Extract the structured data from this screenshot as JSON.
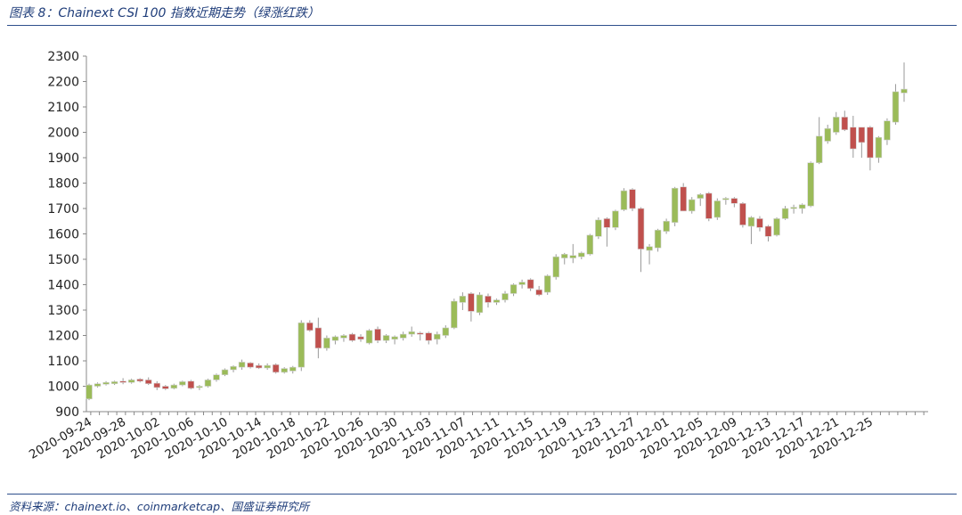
{
  "header": {
    "title": "图表 8：Chainext CSI 100 指数近期走势（绿涨红跌）"
  },
  "footer": {
    "source": "资料来源：chainext.io、coinmarketcap、国盛证券研究所"
  },
  "colors": {
    "up": "#9bbb59",
    "down": "#c0504d",
    "candle_border": "#d0d0d0",
    "wick": "#999999",
    "axis": "#888888",
    "rule": "#2e4f8c",
    "title_text": "#1f3d7a"
  },
  "chart_data": {
    "type": "candlestick",
    "ylim": [
      900,
      2300
    ],
    "yticks": [
      900,
      1000,
      1100,
      1200,
      1300,
      1400,
      1500,
      1600,
      1700,
      1800,
      1900,
      2000,
      2100,
      2200,
      2300
    ],
    "xtick_labels": [
      "2020-09-24",
      "2020-09-28",
      "2020-10-02",
      "2020-10-06",
      "2020-10-10",
      "2020-10-14",
      "2020-10-18",
      "2020-10-22",
      "2020-10-26",
      "2020-10-30",
      "2020-11-03",
      "2020-11-07",
      "2020-11-11",
      "2020-11-15",
      "2020-11-19",
      "2020-11-23",
      "2020-11-27",
      "2020-12-01",
      "2020-12-05",
      "2020-12-09",
      "2020-12-13",
      "2020-12-17",
      "2020-12-21",
      "2020-12-25"
    ],
    "grid": false,
    "candles": [
      {
        "date": "2020-09-24",
        "open": 950,
        "high": 1010,
        "low": 945,
        "close": 1005
      },
      {
        "date": "2020-09-25",
        "open": 1000,
        "high": 1015,
        "low": 995,
        "close": 1010
      },
      {
        "date": "2020-09-26",
        "open": 1008,
        "high": 1020,
        "low": 1003,
        "close": 1015
      },
      {
        "date": "2020-09-27",
        "open": 1010,
        "high": 1022,
        "low": 1005,
        "close": 1018
      },
      {
        "date": "2020-09-28",
        "open": 1020,
        "high": 1032,
        "low": 1008,
        "close": 1015
      },
      {
        "date": "2020-09-29",
        "open": 1015,
        "high": 1030,
        "low": 1010,
        "close": 1025
      },
      {
        "date": "2020-09-30",
        "open": 1028,
        "high": 1032,
        "low": 1015,
        "close": 1020
      },
      {
        "date": "2020-10-01",
        "open": 1025,
        "high": 1035,
        "low": 1005,
        "close": 1010
      },
      {
        "date": "2020-10-02",
        "open": 1012,
        "high": 1020,
        "low": 985,
        "close": 995
      },
      {
        "date": "2020-10-03",
        "open": 1000,
        "high": 1005,
        "low": 985,
        "close": 990
      },
      {
        "date": "2020-10-04",
        "open": 992,
        "high": 1010,
        "low": 988,
        "close": 1005
      },
      {
        "date": "2020-10-05",
        "open": 1005,
        "high": 1022,
        "low": 1000,
        "close": 1018
      },
      {
        "date": "2020-10-06",
        "open": 1020,
        "high": 1025,
        "low": 988,
        "close": 992
      },
      {
        "date": "2020-10-07",
        "open": 995,
        "high": 1005,
        "low": 985,
        "close": 1000
      },
      {
        "date": "2020-10-08",
        "open": 1000,
        "high": 1030,
        "low": 995,
        "close": 1025
      },
      {
        "date": "2020-10-09",
        "open": 1025,
        "high": 1050,
        "low": 1018,
        "close": 1045
      },
      {
        "date": "2020-10-10",
        "open": 1045,
        "high": 1070,
        "low": 1040,
        "close": 1065
      },
      {
        "date": "2020-10-11",
        "open": 1065,
        "high": 1082,
        "low": 1055,
        "close": 1078
      },
      {
        "date": "2020-10-12",
        "open": 1075,
        "high": 1105,
        "low": 1065,
        "close": 1095
      },
      {
        "date": "2020-10-13",
        "open": 1092,
        "high": 1095,
        "low": 1070,
        "close": 1075
      },
      {
        "date": "2020-10-14",
        "open": 1082,
        "high": 1090,
        "low": 1068,
        "close": 1072
      },
      {
        "date": "2020-10-15",
        "open": 1072,
        "high": 1090,
        "low": 1065,
        "close": 1082
      },
      {
        "date": "2020-10-16",
        "open": 1085,
        "high": 1090,
        "low": 1050,
        "close": 1055
      },
      {
        "date": "2020-10-17",
        "open": 1055,
        "high": 1075,
        "low": 1050,
        "close": 1070
      },
      {
        "date": "2020-10-18",
        "open": 1060,
        "high": 1080,
        "low": 1050,
        "close": 1075
      },
      {
        "date": "2020-10-19",
        "open": 1075,
        "high": 1260,
        "low": 1060,
        "close": 1250
      },
      {
        "date": "2020-10-20",
        "open": 1250,
        "high": 1260,
        "low": 1215,
        "close": 1220
      },
      {
        "date": "2020-10-21",
        "open": 1230,
        "high": 1270,
        "low": 1110,
        "close": 1150
      },
      {
        "date": "2020-10-22",
        "open": 1150,
        "high": 1200,
        "low": 1140,
        "close": 1190
      },
      {
        "date": "2020-10-23",
        "open": 1180,
        "high": 1200,
        "low": 1165,
        "close": 1195
      },
      {
        "date": "2020-10-24",
        "open": 1190,
        "high": 1205,
        "low": 1175,
        "close": 1200
      },
      {
        "date": "2020-10-25",
        "open": 1205,
        "high": 1210,
        "low": 1175,
        "close": 1180
      },
      {
        "date": "2020-10-26",
        "open": 1195,
        "high": 1205,
        "low": 1175,
        "close": 1185
      },
      {
        "date": "2020-10-27",
        "open": 1170,
        "high": 1225,
        "low": 1165,
        "close": 1220
      },
      {
        "date": "2020-10-28",
        "open": 1225,
        "high": 1235,
        "low": 1170,
        "close": 1180
      },
      {
        "date": "2020-10-29",
        "open": 1180,
        "high": 1205,
        "low": 1170,
        "close": 1200
      },
      {
        "date": "2020-10-30",
        "open": 1185,
        "high": 1200,
        "low": 1165,
        "close": 1195
      },
      {
        "date": "2020-10-31",
        "open": 1190,
        "high": 1215,
        "low": 1180,
        "close": 1205
      },
      {
        "date": "2020-11-01",
        "open": 1205,
        "high": 1235,
        "low": 1195,
        "close": 1215
      },
      {
        "date": "2020-11-02",
        "open": 1210,
        "high": 1215,
        "low": 1180,
        "close": 1205
      },
      {
        "date": "2020-11-03",
        "open": 1210,
        "high": 1215,
        "low": 1165,
        "close": 1180
      },
      {
        "date": "2020-11-04",
        "open": 1185,
        "high": 1215,
        "low": 1165,
        "close": 1205
      },
      {
        "date": "2020-11-05",
        "open": 1200,
        "high": 1240,
        "low": 1190,
        "close": 1230
      },
      {
        "date": "2020-11-06",
        "open": 1230,
        "high": 1345,
        "low": 1225,
        "close": 1335
      },
      {
        "date": "2020-11-07",
        "open": 1330,
        "high": 1370,
        "low": 1300,
        "close": 1355
      },
      {
        "date": "2020-11-08",
        "open": 1365,
        "high": 1370,
        "low": 1255,
        "close": 1295
      },
      {
        "date": "2020-11-09",
        "open": 1290,
        "high": 1370,
        "low": 1280,
        "close": 1360
      },
      {
        "date": "2020-11-10",
        "open": 1355,
        "high": 1365,
        "low": 1310,
        "close": 1330
      },
      {
        "date": "2020-11-11",
        "open": 1330,
        "high": 1345,
        "low": 1320,
        "close": 1340
      },
      {
        "date": "2020-11-12",
        "open": 1340,
        "high": 1375,
        "low": 1330,
        "close": 1365
      },
      {
        "date": "2020-11-13",
        "open": 1365,
        "high": 1405,
        "low": 1355,
        "close": 1400
      },
      {
        "date": "2020-11-14",
        "open": 1400,
        "high": 1420,
        "low": 1385,
        "close": 1410
      },
      {
        "date": "2020-11-15",
        "open": 1420,
        "high": 1425,
        "low": 1375,
        "close": 1385
      },
      {
        "date": "2020-11-16",
        "open": 1380,
        "high": 1395,
        "low": 1355,
        "close": 1360
      },
      {
        "date": "2020-11-17",
        "open": 1370,
        "high": 1440,
        "low": 1360,
        "close": 1435
      },
      {
        "date": "2020-11-18",
        "open": 1430,
        "high": 1520,
        "low": 1420,
        "close": 1510
      },
      {
        "date": "2020-11-19",
        "open": 1505,
        "high": 1525,
        "low": 1480,
        "close": 1520
      },
      {
        "date": "2020-11-20",
        "open": 1505,
        "high": 1560,
        "low": 1485,
        "close": 1515
      },
      {
        "date": "2020-11-21",
        "open": 1510,
        "high": 1530,
        "low": 1500,
        "close": 1525
      },
      {
        "date": "2020-11-22",
        "open": 1520,
        "high": 1600,
        "low": 1515,
        "close": 1595
      },
      {
        "date": "2020-11-23",
        "open": 1590,
        "high": 1665,
        "low": 1580,
        "close": 1655
      },
      {
        "date": "2020-11-24",
        "open": 1660,
        "high": 1665,
        "low": 1550,
        "close": 1625
      },
      {
        "date": "2020-11-25",
        "open": 1625,
        "high": 1695,
        "low": 1615,
        "close": 1690
      },
      {
        "date": "2020-11-26",
        "open": 1695,
        "high": 1780,
        "low": 1690,
        "close": 1770
      },
      {
        "date": "2020-11-27",
        "open": 1775,
        "high": 1780,
        "low": 1690,
        "close": 1700
      },
      {
        "date": "2020-11-28",
        "open": 1700,
        "high": 1705,
        "low": 1450,
        "close": 1540
      },
      {
        "date": "2020-11-29",
        "open": 1535,
        "high": 1560,
        "low": 1480,
        "close": 1550
      },
      {
        "date": "2020-11-30",
        "open": 1545,
        "high": 1620,
        "low": 1530,
        "close": 1615
      },
      {
        "date": "2020-12-01",
        "open": 1610,
        "high": 1660,
        "low": 1600,
        "close": 1650
      },
      {
        "date": "2020-12-02",
        "open": 1645,
        "high": 1785,
        "low": 1630,
        "close": 1780
      },
      {
        "date": "2020-12-03",
        "open": 1785,
        "high": 1800,
        "low": 1690,
        "close": 1690
      },
      {
        "date": "2020-12-04",
        "open": 1690,
        "high": 1745,
        "low": 1680,
        "close": 1735
      },
      {
        "date": "2020-12-05",
        "open": 1740,
        "high": 1760,
        "low": 1710,
        "close": 1755
      },
      {
        "date": "2020-12-06",
        "open": 1760,
        "high": 1765,
        "low": 1650,
        "close": 1660
      },
      {
        "date": "2020-12-07",
        "open": 1665,
        "high": 1740,
        "low": 1655,
        "close": 1730
      },
      {
        "date": "2020-12-08",
        "open": 1735,
        "high": 1745,
        "low": 1715,
        "close": 1740
      },
      {
        "date": "2020-12-09",
        "open": 1740,
        "high": 1745,
        "low": 1705,
        "close": 1720
      },
      {
        "date": "2020-12-10",
        "open": 1720,
        "high": 1725,
        "low": 1625,
        "close": 1635
      },
      {
        "date": "2020-12-11",
        "open": 1630,
        "high": 1670,
        "low": 1560,
        "close": 1665
      },
      {
        "date": "2020-12-12",
        "open": 1660,
        "high": 1670,
        "low": 1610,
        "close": 1625
      },
      {
        "date": "2020-12-13",
        "open": 1630,
        "high": 1635,
        "low": 1570,
        "close": 1590
      },
      {
        "date": "2020-12-14",
        "open": 1595,
        "high": 1665,
        "low": 1590,
        "close": 1660
      },
      {
        "date": "2020-12-15",
        "open": 1660,
        "high": 1710,
        "low": 1655,
        "close": 1700
      },
      {
        "date": "2020-12-16",
        "open": 1700,
        "high": 1715,
        "low": 1680,
        "close": 1705
      },
      {
        "date": "2020-12-17",
        "open": 1700,
        "high": 1720,
        "low": 1680,
        "close": 1715
      },
      {
        "date": "2020-12-18",
        "open": 1710,
        "high": 1885,
        "low": 1705,
        "close": 1880
      },
      {
        "date": "2020-12-19",
        "open": 1880,
        "high": 2060,
        "low": 1875,
        "close": 1985
      },
      {
        "date": "2020-12-20",
        "open": 1965,
        "high": 2030,
        "low": 1955,
        "close": 2015
      },
      {
        "date": "2020-12-21",
        "open": 2000,
        "high": 2080,
        "low": 1990,
        "close": 2060
      },
      {
        "date": "2020-12-22",
        "open": 2060,
        "high": 2085,
        "low": 2005,
        "close": 2010
      },
      {
        "date": "2020-12-23",
        "open": 2020,
        "high": 2065,
        "low": 1900,
        "close": 1935
      },
      {
        "date": "2020-12-24",
        "open": 2020,
        "high": 2020,
        "low": 1900,
        "close": 1960
      },
      {
        "date": "2020-12-25",
        "open": 2020,
        "high": 2025,
        "low": 1850,
        "close": 1900
      },
      {
        "date": "2020-12-26",
        "open": 1900,
        "high": 1985,
        "low": 1880,
        "close": 1980
      },
      {
        "date": "2020-12-27",
        "open": 1970,
        "high": 2055,
        "low": 1950,
        "close": 2045
      },
      {
        "date": "2020-12-28",
        "open": 2040,
        "high": 2190,
        "low": 2030,
        "close": 2160
      },
      {
        "date": "2020-12-29",
        "open": 2155,
        "high": 2275,
        "low": 2120,
        "close": 2170
      }
    ]
  }
}
